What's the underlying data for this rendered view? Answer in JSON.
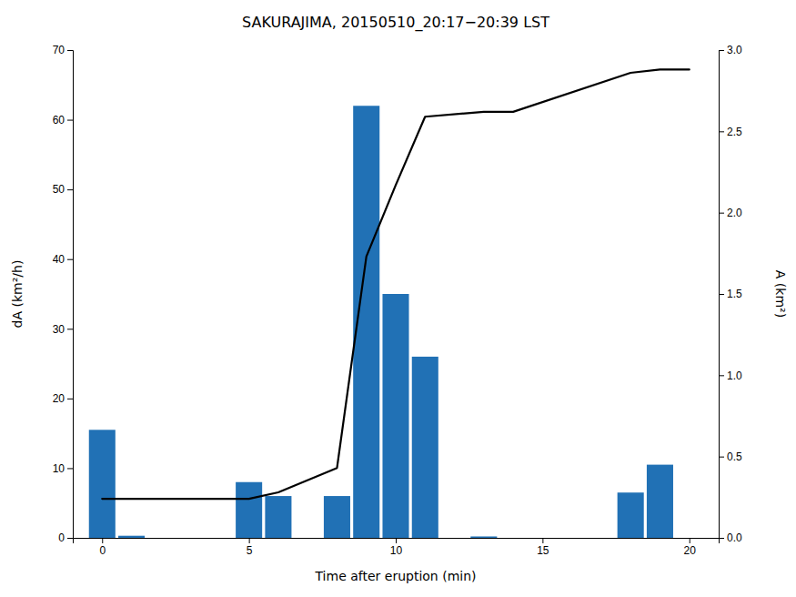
{
  "chart_data": {
    "type": "bar",
    "title": "SAKURAJIMA, 20150510_20:17−20:39 LST",
    "xlabel": "Time after eruption (min)",
    "ylabel": "dA (km²/h)",
    "y2label": "A (km²)",
    "xlim": [
      -1.0,
      21.0
    ],
    "xticks": [
      0,
      5,
      10,
      15,
      20
    ],
    "ylim": [
      0,
      70
    ],
    "yticks": [
      0,
      10,
      20,
      30,
      40,
      50,
      60,
      70
    ],
    "y2lim": [
      0,
      3
    ],
    "y2ticks": [
      {
        "value": 0,
        "label": "0.0"
      },
      0.5,
      {
        "value": 1.0,
        "label": "1.0"
      },
      1.5,
      {
        "value": 2.0,
        "label": "2.0"
      },
      2.5,
      {
        "value": 3.0,
        "label": "3.0"
      }
    ],
    "grid": false,
    "series": [
      {
        "type": "bar",
        "color": "#2171b5",
        "x": [
          0,
          1,
          5,
          6,
          8,
          9,
          10,
          11,
          13,
          18,
          19
        ],
        "values": [
          15.5,
          0.3,
          8.0,
          6.0,
          6.0,
          62.0,
          35.0,
          26.0,
          0.2,
          6.5,
          10.5
        ]
      },
      {
        "type": "line",
        "color": "#000000",
        "axis": "y2",
        "x": [
          0,
          1,
          5,
          6,
          8,
          9,
          10,
          11,
          13,
          14,
          18,
          19,
          20
        ],
        "values": [
          0.24,
          0.24,
          0.24,
          0.28,
          0.43,
          1.73,
          2.17,
          2.59,
          2.62,
          2.62,
          2.86,
          2.88,
          2.88
        ]
      }
    ]
  }
}
